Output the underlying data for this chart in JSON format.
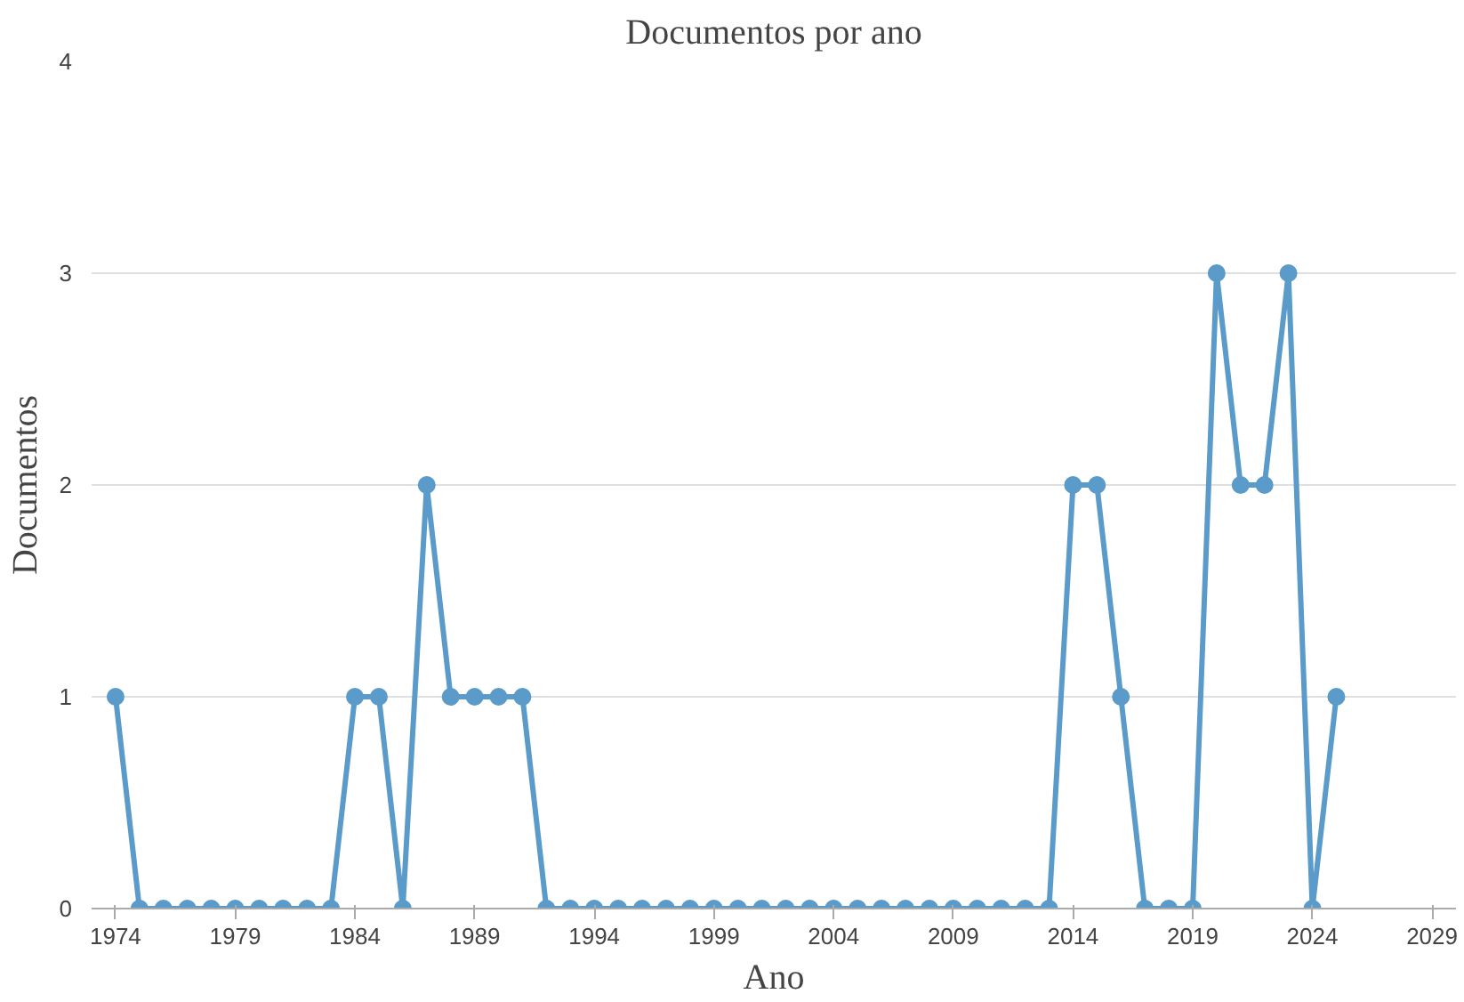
{
  "chart_data": {
    "type": "line",
    "title": "Documentos por ano",
    "xlabel": "Ano",
    "ylabel": "Documentos",
    "x": [
      1974,
      1975,
      1976,
      1977,
      1978,
      1979,
      1980,
      1981,
      1982,
      1983,
      1984,
      1985,
      1986,
      1987,
      1988,
      1989,
      1990,
      1991,
      1992,
      1993,
      1994,
      1995,
      1996,
      1997,
      1998,
      1999,
      2000,
      2001,
      2002,
      2003,
      2004,
      2005,
      2006,
      2007,
      2008,
      2009,
      2010,
      2011,
      2012,
      2013,
      2014,
      2015,
      2016,
      2017,
      2018,
      2019,
      2020,
      2021,
      2022,
      2023,
      2024,
      2025
    ],
    "series": [
      {
        "color": "#5b9bc9",
        "values": [
          1,
          0,
          0,
          0,
          0,
          0,
          0,
          0,
          0,
          0,
          1,
          1,
          0,
          2,
          1,
          1,
          1,
          1,
          0,
          0,
          0,
          0,
          0,
          0,
          0,
          0,
          0,
          0,
          0,
          0,
          0,
          0,
          0,
          0,
          0,
          0,
          0,
          0,
          0,
          0,
          2,
          2,
          1,
          0,
          0,
          0,
          3,
          2,
          2,
          3,
          0,
          1
        ]
      }
    ],
    "xlim": [
      1973,
      2030
    ],
    "xticks": [
      1974,
      1979,
      1984,
      1989,
      1994,
      1999,
      2004,
      2009,
      2014,
      2019,
      2024,
      2029
    ],
    "ylim": [
      0,
      4
    ],
    "yticks": [
      0,
      1,
      2,
      3,
      4
    ],
    "grid": "y",
    "marker": "circle",
    "line_style": "solid"
  }
}
